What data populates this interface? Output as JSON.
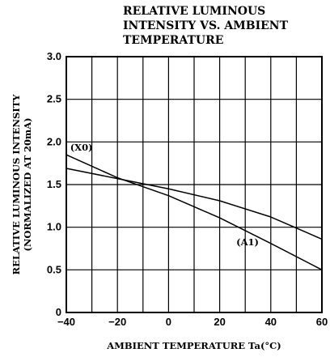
{
  "chart_data": {
    "type": "line",
    "title_lines": [
      "RELATIVE  LUMINOUS",
      "INTENSITY  VS.  AMBIENT",
      "TEMPERATURE"
    ],
    "xlabel": "AMBIENT  TEMPERATURE  Ta(°C)",
    "ylabel_lines": [
      "RELATIVE  LUMINOUS  INTENSITY",
      "(NORMALIZED  AT  20mA)"
    ],
    "xlim": [
      -40,
      60
    ],
    "ylim": [
      0,
      3.0
    ],
    "x_ticks": [
      -40,
      -20,
      0,
      20,
      40,
      60
    ],
    "x_tick_labels": [
      "−40",
      "−20",
      "0",
      "20",
      "40",
      "60"
    ],
    "y_ticks": [
      0,
      0.5,
      1.0,
      1.5,
      2.0,
      2.5,
      3.0
    ],
    "y_tick_labels": [
      "0",
      "0.5",
      "1.0",
      "1.5",
      "2.0",
      "2.5",
      "3.0"
    ],
    "x_minor_grid": [
      -30,
      -10,
      10,
      30,
      50
    ],
    "grid": true,
    "series": [
      {
        "name": "(X0)",
        "x": [
          -40,
          -20,
          0,
          20,
          40,
          60
        ],
        "y": [
          1.69,
          1.57,
          1.45,
          1.31,
          1.12,
          0.86
        ]
      },
      {
        "name": "(A1)",
        "x": [
          -40,
          -20,
          0,
          20,
          40,
          60
        ],
        "y": [
          1.85,
          1.58,
          1.37,
          1.11,
          0.81,
          0.5
        ]
      }
    ]
  }
}
